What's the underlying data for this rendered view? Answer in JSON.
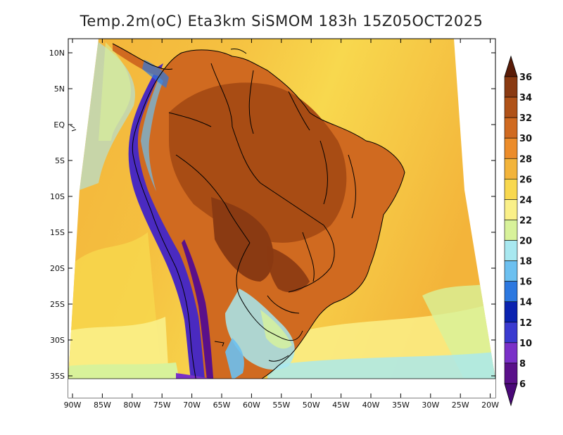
{
  "title": "Temp.2m(oC) Eta3km SiSMOM 183h 15Z05OCT2025",
  "y_axis_labels": [
    "10N",
    "5N",
    "EQ",
    "5S",
    "10S",
    "15S",
    "20S",
    "25S",
    "30S",
    "35S"
  ],
  "x_axis_labels": [
    "90W",
    "85W",
    "80W",
    "75W",
    "70W",
    "65W",
    "60W",
    "55W",
    "50W",
    "45W",
    "40W",
    "35W",
    "30W",
    "25W",
    "20W"
  ],
  "colorbar": {
    "labels": [
      "36",
      "34",
      "32",
      "30",
      "28",
      "26",
      "24",
      "22",
      "20",
      "18",
      "16",
      "14",
      "12",
      "10",
      "8",
      "6"
    ],
    "colors": [
      "#6b2a10",
      "#8a3a12",
      "#b05218",
      "#d06a20",
      "#ec8c2a",
      "#f3b43a",
      "#f8d84e",
      "#faf088",
      "#d8f29a",
      "#a8e8f0",
      "#6cc0f0",
      "#2c78e0",
      "#0a22b0",
      "#3a3ad0",
      "#7a30c8",
      "#5a108a"
    ],
    "top_color": "#5a1c08",
    "bottom_color": "#4a0878"
  },
  "palette": {
    "ocean_warm": "#f3b43a",
    "ocean_mid": "#f8d84e",
    "ocean_cool": "#faf088",
    "land_hot": "#b05218",
    "land_warm": "#d06a20",
    "andes": "#4a2ac0",
    "coast": "#000000"
  }
}
